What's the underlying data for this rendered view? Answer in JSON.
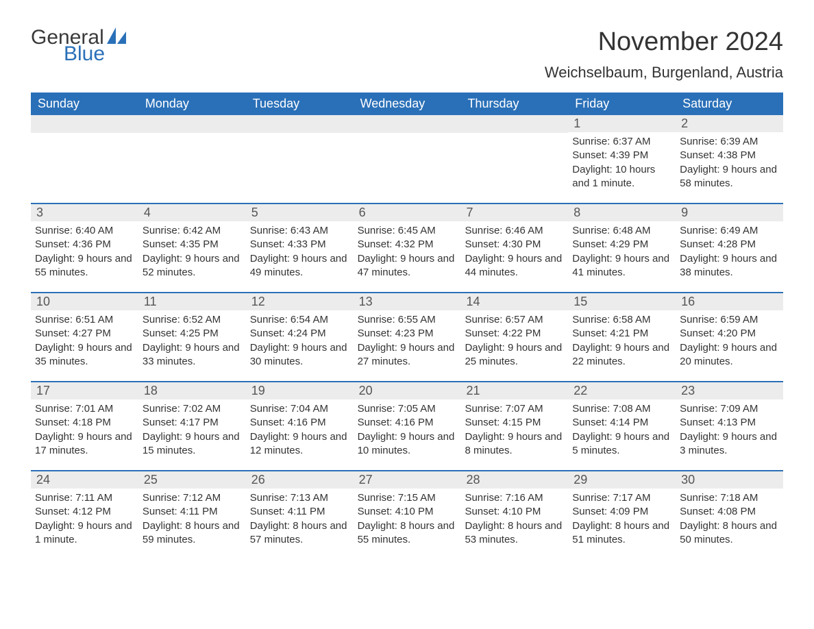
{
  "brand": {
    "general": "General",
    "blue": "Blue",
    "sail_color": "#2a70b8",
    "text_color": "#3a3a3a"
  },
  "title": "November 2024",
  "location": "Weichselbaum, Burgenland, Austria",
  "colors": {
    "header_bg": "#2a70b8",
    "header_text": "#ffffff",
    "daynum_bg": "#ececec",
    "border": "#2a70b8",
    "body_text": "#333333",
    "page_bg": "#ffffff"
  },
  "fonts": {
    "title_size_pt": 28,
    "location_size_pt": 17,
    "dow_size_pt": 14,
    "daynum_size_pt": 14,
    "body_size_pt": 11
  },
  "days_of_week": [
    "Sunday",
    "Monday",
    "Tuesday",
    "Wednesday",
    "Thursday",
    "Friday",
    "Saturday"
  ],
  "weeks": [
    [
      {
        "n": "",
        "sunrise": "",
        "sunset": "",
        "daylight": ""
      },
      {
        "n": "",
        "sunrise": "",
        "sunset": "",
        "daylight": ""
      },
      {
        "n": "",
        "sunrise": "",
        "sunset": "",
        "daylight": ""
      },
      {
        "n": "",
        "sunrise": "",
        "sunset": "",
        "daylight": ""
      },
      {
        "n": "",
        "sunrise": "",
        "sunset": "",
        "daylight": ""
      },
      {
        "n": "1",
        "sunrise": "Sunrise: 6:37 AM",
        "sunset": "Sunset: 4:39 PM",
        "daylight": "Daylight: 10 hours and 1 minute."
      },
      {
        "n": "2",
        "sunrise": "Sunrise: 6:39 AM",
        "sunset": "Sunset: 4:38 PM",
        "daylight": "Daylight: 9 hours and 58 minutes."
      }
    ],
    [
      {
        "n": "3",
        "sunrise": "Sunrise: 6:40 AM",
        "sunset": "Sunset: 4:36 PM",
        "daylight": "Daylight: 9 hours and 55 minutes."
      },
      {
        "n": "4",
        "sunrise": "Sunrise: 6:42 AM",
        "sunset": "Sunset: 4:35 PM",
        "daylight": "Daylight: 9 hours and 52 minutes."
      },
      {
        "n": "5",
        "sunrise": "Sunrise: 6:43 AM",
        "sunset": "Sunset: 4:33 PM",
        "daylight": "Daylight: 9 hours and 49 minutes."
      },
      {
        "n": "6",
        "sunrise": "Sunrise: 6:45 AM",
        "sunset": "Sunset: 4:32 PM",
        "daylight": "Daylight: 9 hours and 47 minutes."
      },
      {
        "n": "7",
        "sunrise": "Sunrise: 6:46 AM",
        "sunset": "Sunset: 4:30 PM",
        "daylight": "Daylight: 9 hours and 44 minutes."
      },
      {
        "n": "8",
        "sunrise": "Sunrise: 6:48 AM",
        "sunset": "Sunset: 4:29 PM",
        "daylight": "Daylight: 9 hours and 41 minutes."
      },
      {
        "n": "9",
        "sunrise": "Sunrise: 6:49 AM",
        "sunset": "Sunset: 4:28 PM",
        "daylight": "Daylight: 9 hours and 38 minutes."
      }
    ],
    [
      {
        "n": "10",
        "sunrise": "Sunrise: 6:51 AM",
        "sunset": "Sunset: 4:27 PM",
        "daylight": "Daylight: 9 hours and 35 minutes."
      },
      {
        "n": "11",
        "sunrise": "Sunrise: 6:52 AM",
        "sunset": "Sunset: 4:25 PM",
        "daylight": "Daylight: 9 hours and 33 minutes."
      },
      {
        "n": "12",
        "sunrise": "Sunrise: 6:54 AM",
        "sunset": "Sunset: 4:24 PM",
        "daylight": "Daylight: 9 hours and 30 minutes."
      },
      {
        "n": "13",
        "sunrise": "Sunrise: 6:55 AM",
        "sunset": "Sunset: 4:23 PM",
        "daylight": "Daylight: 9 hours and 27 minutes."
      },
      {
        "n": "14",
        "sunrise": "Sunrise: 6:57 AM",
        "sunset": "Sunset: 4:22 PM",
        "daylight": "Daylight: 9 hours and 25 minutes."
      },
      {
        "n": "15",
        "sunrise": "Sunrise: 6:58 AM",
        "sunset": "Sunset: 4:21 PM",
        "daylight": "Daylight: 9 hours and 22 minutes."
      },
      {
        "n": "16",
        "sunrise": "Sunrise: 6:59 AM",
        "sunset": "Sunset: 4:20 PM",
        "daylight": "Daylight: 9 hours and 20 minutes."
      }
    ],
    [
      {
        "n": "17",
        "sunrise": "Sunrise: 7:01 AM",
        "sunset": "Sunset: 4:18 PM",
        "daylight": "Daylight: 9 hours and 17 minutes."
      },
      {
        "n": "18",
        "sunrise": "Sunrise: 7:02 AM",
        "sunset": "Sunset: 4:17 PM",
        "daylight": "Daylight: 9 hours and 15 minutes."
      },
      {
        "n": "19",
        "sunrise": "Sunrise: 7:04 AM",
        "sunset": "Sunset: 4:16 PM",
        "daylight": "Daylight: 9 hours and 12 minutes."
      },
      {
        "n": "20",
        "sunrise": "Sunrise: 7:05 AM",
        "sunset": "Sunset: 4:16 PM",
        "daylight": "Daylight: 9 hours and 10 minutes."
      },
      {
        "n": "21",
        "sunrise": "Sunrise: 7:07 AM",
        "sunset": "Sunset: 4:15 PM",
        "daylight": "Daylight: 9 hours and 8 minutes."
      },
      {
        "n": "22",
        "sunrise": "Sunrise: 7:08 AM",
        "sunset": "Sunset: 4:14 PM",
        "daylight": "Daylight: 9 hours and 5 minutes."
      },
      {
        "n": "23",
        "sunrise": "Sunrise: 7:09 AM",
        "sunset": "Sunset: 4:13 PM",
        "daylight": "Daylight: 9 hours and 3 minutes."
      }
    ],
    [
      {
        "n": "24",
        "sunrise": "Sunrise: 7:11 AM",
        "sunset": "Sunset: 4:12 PM",
        "daylight": "Daylight: 9 hours and 1 minute."
      },
      {
        "n": "25",
        "sunrise": "Sunrise: 7:12 AM",
        "sunset": "Sunset: 4:11 PM",
        "daylight": "Daylight: 8 hours and 59 minutes."
      },
      {
        "n": "26",
        "sunrise": "Sunrise: 7:13 AM",
        "sunset": "Sunset: 4:11 PM",
        "daylight": "Daylight: 8 hours and 57 minutes."
      },
      {
        "n": "27",
        "sunrise": "Sunrise: 7:15 AM",
        "sunset": "Sunset: 4:10 PM",
        "daylight": "Daylight: 8 hours and 55 minutes."
      },
      {
        "n": "28",
        "sunrise": "Sunrise: 7:16 AM",
        "sunset": "Sunset: 4:10 PM",
        "daylight": "Daylight: 8 hours and 53 minutes."
      },
      {
        "n": "29",
        "sunrise": "Sunrise: 7:17 AM",
        "sunset": "Sunset: 4:09 PM",
        "daylight": "Daylight: 8 hours and 51 minutes."
      },
      {
        "n": "30",
        "sunrise": "Sunrise: 7:18 AM",
        "sunset": "Sunset: 4:08 PM",
        "daylight": "Daylight: 8 hours and 50 minutes."
      }
    ]
  ]
}
